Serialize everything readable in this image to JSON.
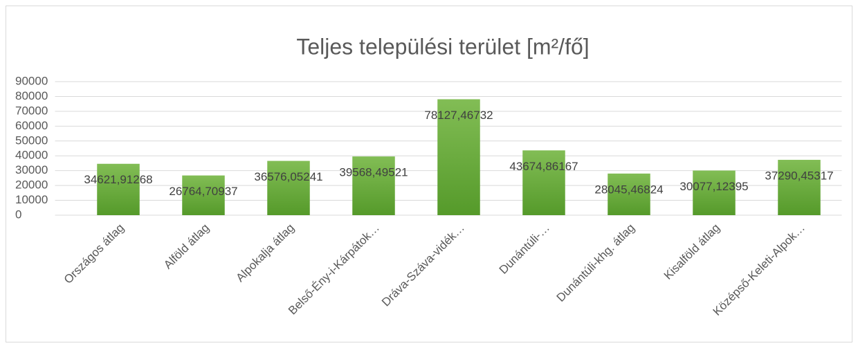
{
  "chart_data": {
    "type": "bar",
    "title": "Teljes települési terület [m²/fő]",
    "categories": [
      "Országos átlag",
      "Alföld átlag",
      "Alpokalja átlag",
      "Belső-Ény-i-Kárpátok…",
      "Dráva-Száva-vidék…",
      "Dunántúli-…",
      "Dunántúli-khg. átlag",
      "Kisalföld átlag",
      "Középső-Keleti-Alpok…"
    ],
    "values": [
      34621.91268,
      26764.70937,
      36576.05241,
      39568.49521,
      78127.46732,
      43674.86167,
      28045.46824,
      30077.12395,
      37290.45317
    ],
    "value_labels": [
      "34621,91268",
      "26764,70937",
      "36576,05241",
      "39568,49521",
      "78127,46732",
      "43674,86167",
      "28045,46824",
      "30077,12395",
      "37290,45317"
    ],
    "color": "#6aab3c",
    "ylim": [
      0,
      90000
    ],
    "yticks": [
      0,
      10000,
      20000,
      30000,
      40000,
      50000,
      60000,
      70000,
      80000,
      90000
    ],
    "grid": true
  }
}
